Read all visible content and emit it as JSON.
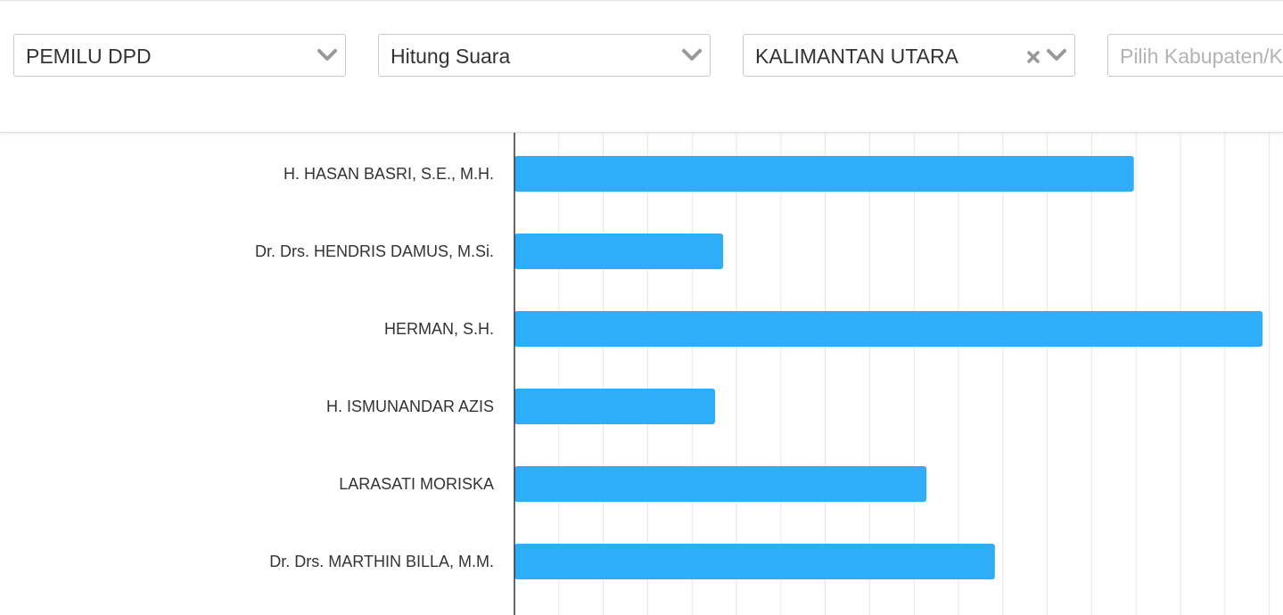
{
  "filters": {
    "pemilu": {
      "value": "PEMILU DPD",
      "icon": "chevron-down-icon"
    },
    "hitung": {
      "value": "Hitung Suara",
      "icon": "chevron-down-icon"
    },
    "provinsi": {
      "value": "KALIMANTAN UTARA",
      "icons": [
        "close-icon",
        "chevron-down-icon"
      ]
    },
    "kabupaten": {
      "placeholder": "Pilih Kabupaten/Kota"
    }
  },
  "colors": {
    "bar": "#2eaef8",
    "grid": "#e6e6e6",
    "axis": "#333333"
  },
  "chart_data": {
    "type": "bar",
    "orientation": "horizontal",
    "categories": [
      "H. HASAN BASRI, S.E., M.H.",
      "Dr. Drs. HENDRIS DAMUS, M.Si.",
      "HERMAN, S.H.",
      "H. ISMUNANDAR AZIS",
      "LARASATI MORISKA",
      "Dr. Drs. MARTHIN BILLA, M.M."
    ],
    "values": [
      13.95,
      4.7,
      16.85,
      4.52,
      9.28,
      10.82
    ],
    "grid": true,
    "xlim": [
      0,
      17
    ]
  }
}
